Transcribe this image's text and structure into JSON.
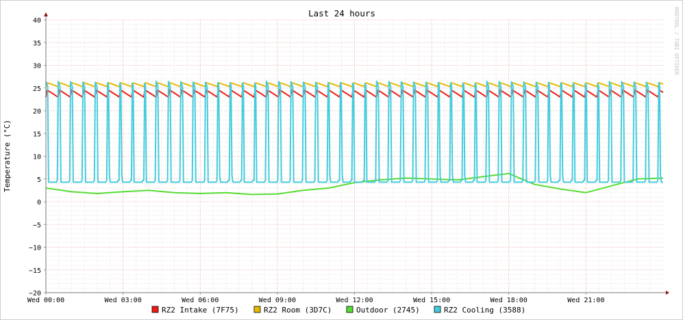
{
  "chart_data": {
    "type": "line",
    "title": "Last 24 hours",
    "ylabel": "Temperature (°C)",
    "watermark": "RRDTOOL / TOBI OETIKER",
    "ylim": [
      -20,
      40
    ],
    "xlim": [
      0,
      24
    ],
    "y_ticks": [
      "40",
      "35",
      "30",
      "25",
      "20",
      "15",
      "10",
      "5",
      "0",
      "−5",
      "−10",
      "−15",
      "−20"
    ],
    "y_tick_values": [
      40,
      35,
      30,
      25,
      20,
      15,
      10,
      5,
      0,
      -5,
      -10,
      -15,
      -20
    ],
    "x_ticks": [
      "Wed 00:00",
      "Wed 03:00",
      "Wed 06:00",
      "Wed 09:00",
      "Wed 12:00",
      "Wed 15:00",
      "Wed 18:00",
      "Wed 21:00"
    ],
    "x_tick_values": [
      0,
      3,
      6,
      9,
      12,
      15,
      18,
      21
    ],
    "grid": true,
    "legend_position": "bottom",
    "series": [
      {
        "name": "RZ2 Intake (7F75)",
        "color": "#ee1c14",
        "pattern": {
          "low": 23.0,
          "high": 24.6,
          "cycles_per_hour": 2.1
        }
      },
      {
        "name": "RZ2 Room (3D7C)",
        "color": "#e6b800",
        "pattern": {
          "low": 25.3,
          "high": 26.2,
          "cycles_per_hour": 2.1
        }
      },
      {
        "name": "Outdoor (2745)",
        "color": "#55dd33",
        "points": [
          [
            0,
            3.0
          ],
          [
            1,
            2.2
          ],
          [
            2,
            1.8
          ],
          [
            3,
            2.2
          ],
          [
            4,
            2.5
          ],
          [
            5,
            2.0
          ],
          [
            6,
            1.8
          ],
          [
            7,
            2.0
          ],
          [
            8,
            1.6
          ],
          [
            9,
            1.7
          ],
          [
            10,
            2.5
          ],
          [
            11,
            3.0
          ],
          [
            12,
            4.2
          ],
          [
            13,
            4.8
          ],
          [
            14,
            5.2
          ],
          [
            15,
            5.0
          ],
          [
            16,
            4.8
          ],
          [
            17,
            5.5
          ],
          [
            18,
            6.2
          ],
          [
            19,
            3.8
          ],
          [
            20,
            2.8
          ],
          [
            21,
            2.0
          ],
          [
            22,
            3.5
          ],
          [
            23,
            5.0
          ],
          [
            24,
            5.2
          ]
        ]
      },
      {
        "name": "RZ2 Cooling (3588)",
        "color": "#44ccdd",
        "pattern": {
          "low": 4.3,
          "high": 26.5,
          "cycles_per_hour": 2.1
        }
      }
    ]
  }
}
